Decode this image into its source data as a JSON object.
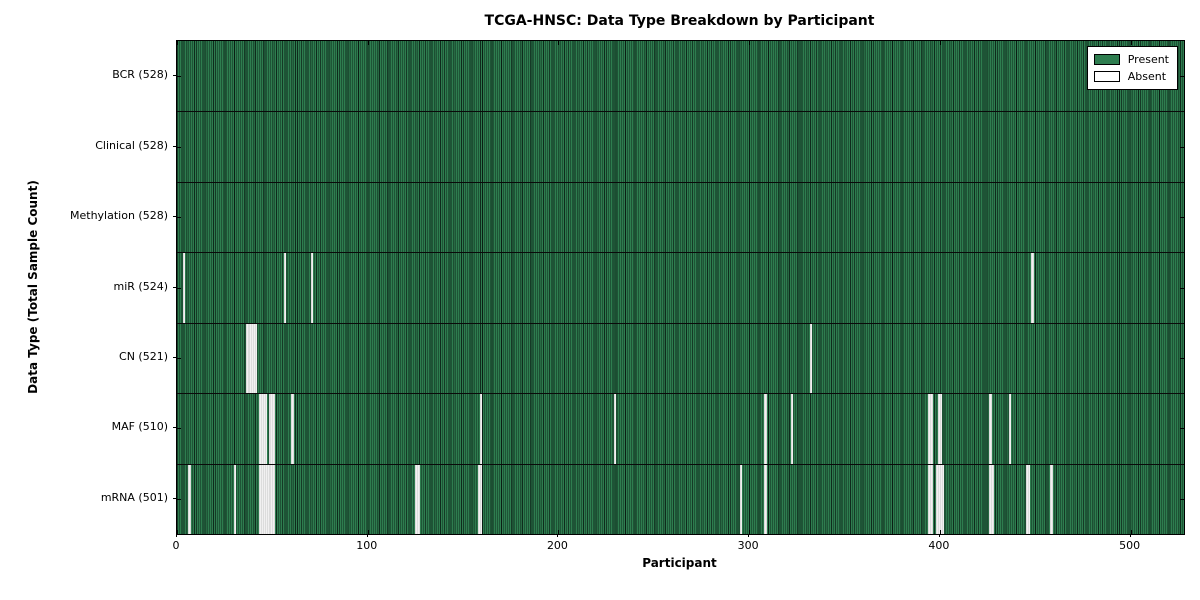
{
  "figure": {
    "title": "TCGA-HNSC: Data Type Breakdown by Participant",
    "xlabel": "Participant",
    "ylabel": "Data Type (Total Sample Count)"
  },
  "legend": {
    "position": "upper right",
    "items": [
      {
        "label": "Present",
        "color": "#2e7d4f"
      },
      {
        "label": "Absent",
        "color": "#ffffff"
      }
    ]
  },
  "chart_data": {
    "type": "heatmap",
    "title": "TCGA-HNSC: Data Type Breakdown by Participant",
    "xlabel": "Participant",
    "ylabel": "Data Type (Total Sample Count)",
    "xlim": [
      0,
      528
    ],
    "x_ticks": [
      0,
      100,
      200,
      300,
      400,
      500
    ],
    "n_participants": 528,
    "grid": false,
    "legend_entries": [
      "Present",
      "Absent"
    ],
    "legend_position": "upper right",
    "colors": {
      "present": "#2e7d4f",
      "absent": "#ffffff",
      "bar_edge": "#000000"
    },
    "rows": [
      {
        "label": "BCR (528)",
        "data_type": "BCR",
        "present_count": 528,
        "absent_participants": []
      },
      {
        "label": "Clinical (528)",
        "data_type": "Clinical",
        "present_count": 528,
        "absent_participants": []
      },
      {
        "label": "Methylation (528)",
        "data_type": "Methylation",
        "present_count": 528,
        "absent_participants": []
      },
      {
        "label": "miR (524)",
        "data_type": "miR",
        "present_count": 524,
        "absent_participants": [
          3,
          56,
          70,
          448
        ]
      },
      {
        "label": "CN (521)",
        "data_type": "CN",
        "present_count": 521,
        "absent_participants": [
          36,
          37,
          38,
          39,
          40,
          41,
          332
        ]
      },
      {
        "label": "MAF (510)",
        "data_type": "MAF",
        "present_count": 510,
        "absent_participants": [
          43,
          44,
          45,
          46,
          48,
          49,
          50,
          60,
          159,
          229,
          308,
          322,
          394,
          395,
          399,
          400,
          426,
          436
        ]
      },
      {
        "label": "mRNA (501)",
        "data_type": "mRNA",
        "present_count": 501,
        "absent_participants": [
          6,
          30,
          43,
          44,
          45,
          46,
          47,
          48,
          49,
          50,
          125,
          126,
          158,
          159,
          295,
          308,
          394,
          395,
          398,
          399,
          400,
          401,
          426,
          427,
          445,
          446,
          458
        ]
      }
    ]
  }
}
